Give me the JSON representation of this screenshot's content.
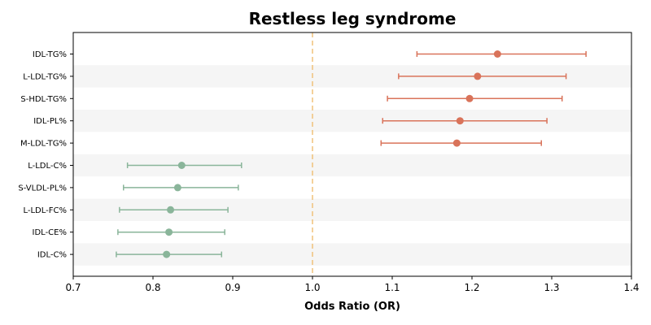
{
  "chart_data": {
    "type": "forest",
    "title": "Restless leg syndrome",
    "xlabel": "Odds Ratio (OR)",
    "xlim": [
      0.7,
      1.4
    ],
    "xticks": [
      "0.7",
      "0.8",
      "0.9",
      "1.0",
      "1.1",
      "1.2",
      "1.3",
      "1.4"
    ],
    "reference_line": 1.0,
    "reference_color": "#f0c27a",
    "positive_color": "#d9735a",
    "negative_color": "#8ab59a",
    "band_color": "#f5f5f5",
    "items": [
      {
        "label": "IDL-TG%",
        "or": 1.232,
        "lower": 1.131,
        "upper": 1.343
      },
      {
        "label": "L-LDL-TG%",
        "or": 1.207,
        "lower": 1.108,
        "upper": 1.318
      },
      {
        "label": "S-HDL-TG%",
        "or": 1.197,
        "lower": 1.094,
        "upper": 1.313
      },
      {
        "label": "IDL-PL%",
        "or": 1.185,
        "lower": 1.088,
        "upper": 1.294
      },
      {
        "label": "M-LDL-TG%",
        "or": 1.181,
        "lower": 1.086,
        "upper": 1.287
      },
      {
        "label": "L-LDL-C%",
        "or": 0.836,
        "lower": 0.768,
        "upper": 0.911
      },
      {
        "label": "S-VLDL-PL%",
        "or": 0.831,
        "lower": 0.763,
        "upper": 0.907
      },
      {
        "label": "L-LDL-FC%",
        "or": 0.822,
        "lower": 0.758,
        "upper": 0.894
      },
      {
        "label": "IDL-CE%",
        "or": 0.82,
        "lower": 0.756,
        "upper": 0.89
      },
      {
        "label": "IDL-C%",
        "or": 0.817,
        "lower": 0.754,
        "upper": 0.886
      }
    ]
  }
}
